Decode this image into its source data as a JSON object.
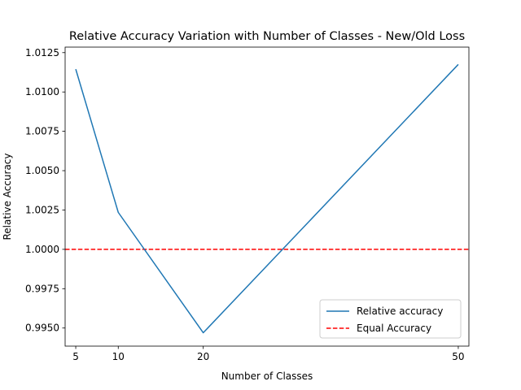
{
  "chart_data": {
    "type": "line",
    "title": "Relative Accuracy Variation with Number of Classes - New/Old Loss",
    "xlabel": "Number of Classes",
    "ylabel": "Relative Accuracy",
    "xlim": [
      3.75,
      51.25
    ],
    "ylim": [
      0.99385,
      1.01285
    ],
    "xticks": [
      5,
      10,
      20,
      50
    ],
    "yticks": [
      0.995,
      0.9975,
      1.0,
      1.0025,
      1.005,
      1.0075,
      1.01,
      1.0125
    ],
    "ytick_labels": [
      "0.9950",
      "0.9975",
      "1.0000",
      "1.0025",
      "1.0050",
      "1.0075",
      "1.0100",
      "1.0125"
    ],
    "grid": false,
    "legend_position": "lower-right",
    "series": [
      {
        "name": "Relative accuracy",
        "color": "#1f77b4",
        "style": "solid",
        "x": [
          5,
          10,
          20,
          50
        ],
        "y": [
          1.01145,
          1.00235,
          0.9947,
          1.01175
        ]
      }
    ],
    "hlines": [
      {
        "name": "Equal Accuracy",
        "y": 1.0,
        "color": "#ff0000",
        "style": "dashed"
      }
    ]
  }
}
